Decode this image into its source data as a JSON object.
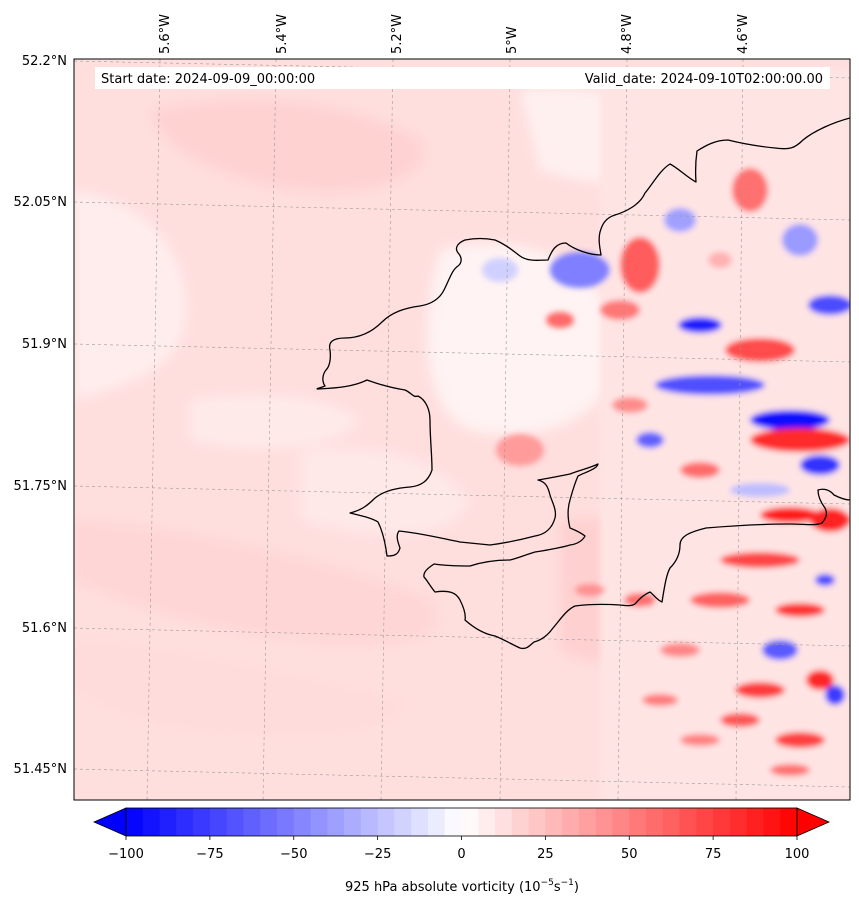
{
  "map": {
    "start_label": "Start date: 2024-09-09_00:00:00",
    "valid_label": "Valid_date: 2024-09-10T02:00:00.00",
    "lon_ticks": [
      "5.6°W",
      "5.4°W",
      "5.2°W",
      "5°W",
      "4.8°W",
      "4.6°W"
    ],
    "lat_ticks": [
      "52.2°N",
      "52.05°N",
      "51.9°N",
      "51.75°N",
      "51.6°N",
      "51.45°N"
    ],
    "field": "925 hPa absolute vorticity",
    "colors": {
      "negative": "#0000ff",
      "zero": "#ffffff",
      "positive": "#ff0000",
      "coast": "#000000"
    }
  },
  "colorbar": {
    "ticks": [
      "−100",
      "−75",
      "−50",
      "−25",
      "0",
      "25",
      "50",
      "75",
      "100"
    ],
    "values": [
      -100,
      -75,
      -50,
      -25,
      0,
      25,
      50,
      75,
      100
    ],
    "range": [
      -100,
      100
    ],
    "levels": 40,
    "label_main": "925 hPa absolute vorticity (10",
    "label_exp1": "−5",
    "label_mid": "s",
    "label_exp2": "−1",
    "label_end": ")"
  }
}
